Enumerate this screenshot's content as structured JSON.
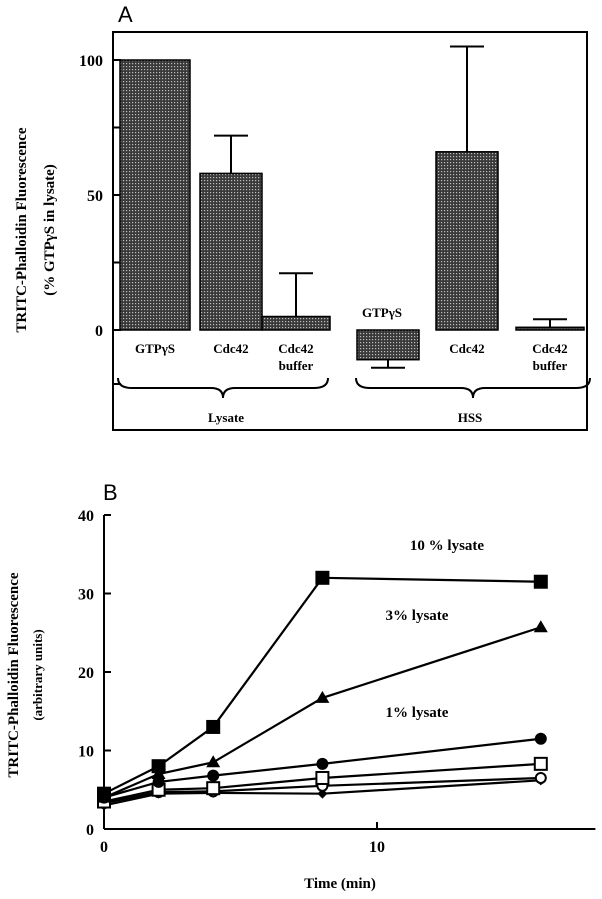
{
  "chart_data": [
    {
      "panel": "A",
      "type": "bar",
      "ylabel": "TRITC-Phalloidin Fluorescence",
      "ylabel2": "(% GTPγS in lysate)",
      "yticks": [
        "100",
        "50",
        "0"
      ],
      "ylim": [
        -33,
        118
      ],
      "categories": [
        "GTPγS",
        "Cdc42",
        "Cdc42 buffer",
        "GTPγS",
        "Cdc42",
        "Cdc42 buffer"
      ],
      "category_lines": [
        [
          "GTPγS"
        ],
        [
          "Cdc42"
        ],
        [
          "Cdc42",
          "buffer"
        ],
        [
          "GTPγS"
        ],
        [
          "Cdc42"
        ],
        [
          "Cdc42",
          "buffer"
        ]
      ],
      "groups": [
        "Lysate",
        "HSS"
      ],
      "values": [
        100,
        58,
        5,
        -11,
        66,
        1
      ],
      "error": [
        0,
        14,
        16,
        3,
        39,
        3
      ]
    },
    {
      "panel": "B",
      "type": "line",
      "xlabel": "Time (min)",
      "ylabel": "TRITC-Phalloidin Fluorescence",
      "ylabel2": "(arbitrary units)",
      "xlim": [
        0,
        18
      ],
      "ylim": [
        0,
        40
      ],
      "xticks": [
        "0",
        "10"
      ],
      "yticks": [
        "40",
        "30",
        "20",
        "10",
        "0"
      ],
      "x": [
        0,
        2,
        4,
        8,
        16
      ],
      "series": [
        {
          "name": "10 % lysate",
          "marker": "filled-square",
          "values": [
            4.5,
            8,
            13,
            32,
            31.5
          ]
        },
        {
          "name": "3% lysate",
          "marker": "filled-triangle",
          "values": [
            4,
            7,
            8.5,
            16.7,
            25.7
          ]
        },
        {
          "name": "1% lysate",
          "marker": "filled-circle",
          "values": [
            4,
            6,
            6.8,
            8.3,
            11.5
          ]
        },
        {
          "marker": "open-square",
          "values": [
            3.5,
            5,
            5.2,
            6.5,
            8.3
          ]
        },
        {
          "marker": "open-circle",
          "values": [
            3.3,
            4.7,
            4.8,
            5.5,
            6.5
          ]
        },
        {
          "marker": "filled-diamond",
          "values": [
            3,
            4.5,
            4.6,
            4.5,
            6.2
          ]
        }
      ]
    }
  ]
}
